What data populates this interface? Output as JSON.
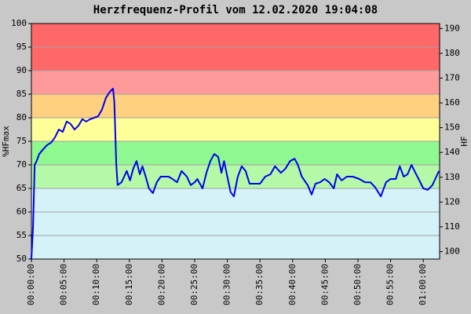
{
  "chart_data": {
    "type": "line",
    "title": "Herzfrequenz-Profil vom 12.02.2020 19:04:08",
    "ylabel": "%HFmax",
    "y2label": "HF",
    "xlim": [
      0,
      62.5
    ],
    "ylim": [
      50,
      100
    ],
    "y2lim": [
      97,
      192
    ],
    "yticks": [
      50,
      55,
      60,
      65,
      70,
      75,
      80,
      85,
      90,
      95,
      100
    ],
    "y2ticks": [
      100,
      110,
      120,
      130,
      140,
      150,
      160,
      170,
      180,
      190
    ],
    "xticks": [
      {
        "value": 0,
        "label": "00:00:00"
      },
      {
        "value": 5,
        "label": "00:05:00"
      },
      {
        "value": 10,
        "label": "00:10:00"
      },
      {
        "value": 15,
        "label": "00:15:00"
      },
      {
        "value": 20,
        "label": "00:20:00"
      },
      {
        "value": 25,
        "label": "00:25:00"
      },
      {
        "value": 30,
        "label": "00:30:00"
      },
      {
        "value": 35,
        "label": "00:35:00"
      },
      {
        "value": 40,
        "label": "00:40:00"
      },
      {
        "value": 45,
        "label": "00:45:00"
      },
      {
        "value": 50,
        "label": "00:50:00"
      },
      {
        "value": 55,
        "label": "00:55:00"
      },
      {
        "value": 60,
        "label": "01:00:00"
      }
    ],
    "grid": true,
    "bands": [
      {
        "from": 50,
        "to": 65,
        "color": "#d4f2f8"
      },
      {
        "from": 65,
        "to": 70,
        "color": "#b4f8a8"
      },
      {
        "from": 70,
        "to": 75,
        "color": "#90f890"
      },
      {
        "from": 75,
        "to": 80,
        "color": "#ffff99"
      },
      {
        "from": 80,
        "to": 85,
        "color": "#ffd080"
      },
      {
        "from": 85,
        "to": 90,
        "color": "#ff9a9a"
      },
      {
        "from": 90,
        "to": 100,
        "color": "#ff6868"
      }
    ],
    "series": [
      {
        "color": "#0000ee",
        "x": [
          0,
          0.25,
          0.5,
          0.8,
          1.2,
          1.8,
          2.4,
          3,
          3.6,
          4.2,
          4.8,
          5.4,
          6,
          6.6,
          7.2,
          7.8,
          8.4,
          9,
          9.6,
          10.2,
          10.8,
          11.4,
          12,
          12.5,
          12.7,
          13,
          13.2,
          13.8,
          14.2,
          14.6,
          15.1,
          15.6,
          16.1,
          16.6,
          17,
          17.5,
          18,
          18.6,
          19.2,
          19.8,
          20.4,
          21,
          21.6,
          22.3,
          23,
          23.8,
          24.4,
          25,
          25.4,
          26.2,
          26.8,
          27.4,
          28,
          28.6,
          29.1,
          29.5,
          30,
          30.5,
          31,
          31.6,
          32.2,
          32.8,
          33.4,
          34.2,
          35,
          35.8,
          36.6,
          37.3,
          38.2,
          38.9,
          39.6,
          40.3,
          40.8,
          41.4,
          42.3,
          42.9,
          43.5,
          44.2,
          44.9,
          45.6,
          46.3,
          46.8,
          47.5,
          48.3,
          49.2,
          50.2,
          51.1,
          51.9,
          52.6,
          53.5,
          54.3,
          55,
          55.8,
          56.4,
          57,
          57.6,
          58.2,
          58.8,
          59.4,
          60,
          60.7,
          61.4,
          62,
          62.4
        ],
        "values": [
          50,
          56.7,
          70,
          70.8,
          72.3,
          73.3,
          74.2,
          74.7,
          75.8,
          77.5,
          77,
          79.2,
          78.7,
          77.5,
          78.3,
          79.7,
          79.2,
          79.7,
          80,
          80.3,
          81.7,
          84.2,
          85.5,
          86.2,
          83.3,
          70,
          65.7,
          66.3,
          67.5,
          68.7,
          66.7,
          69.2,
          70.8,
          68,
          69.7,
          67.5,
          65,
          64,
          66.3,
          67.5,
          67.5,
          67.5,
          67,
          66.3,
          68.7,
          67.5,
          65.7,
          66.3,
          67,
          65,
          68.3,
          70.8,
          72.3,
          71.7,
          68.3,
          70.8,
          67.5,
          64.2,
          63.3,
          67.5,
          69.7,
          68.7,
          66,
          66,
          66,
          67.5,
          68,
          69.7,
          68.3,
          69.2,
          70.8,
          71.3,
          70,
          67.5,
          65.7,
          63.7,
          66,
          66.3,
          67,
          66.3,
          65,
          68,
          66.7,
          67.5,
          67.5,
          67,
          66.3,
          66.3,
          65.3,
          63.3,
          66.3,
          67,
          67,
          69.7,
          67.5,
          68,
          70,
          68.3,
          66.7,
          65,
          64.7,
          65.7,
          67.5,
          68.7
        ]
      }
    ]
  }
}
